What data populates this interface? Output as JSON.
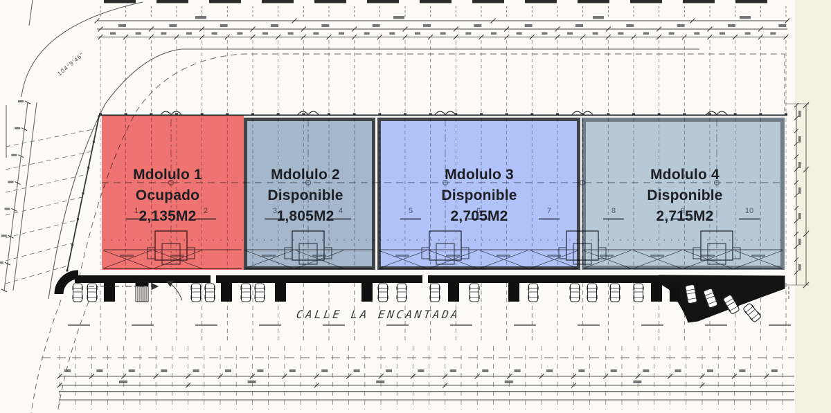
{
  "page": {
    "background_color": "#fcfbf7",
    "margin_color": "#f5f1e2",
    "label_text_color": "#1d1f24"
  },
  "plan": {
    "corner_angle_label": "104°9'46\"",
    "street_label": "CALLE LA ENCANTADA",
    "modules": [
      {
        "name": "Mdolulo 1",
        "status": "Ocupado",
        "area": "2,135M2",
        "fill": "#ee6765",
        "border": "none"
      },
      {
        "name": "Mdolulo 2",
        "status": "Disponible",
        "area": "1,805M2",
        "fill": "#9db1c6",
        "border": "#3e4043"
      },
      {
        "name": "Mdolulo 3",
        "status": "Disponible",
        "area": "2,705M2",
        "fill": "#a9bdf6",
        "border": "#3e4043"
      },
      {
        "name": "Mdolulo 4",
        "status": "Disponible",
        "area": "2,715M2",
        "fill": "#b1c3d3",
        "border": "#6e7b86"
      }
    ],
    "bay_numbers": [
      "1",
      "2",
      "3",
      "4",
      "5",
      "6",
      "7",
      "8",
      "9",
      "10"
    ]
  }
}
